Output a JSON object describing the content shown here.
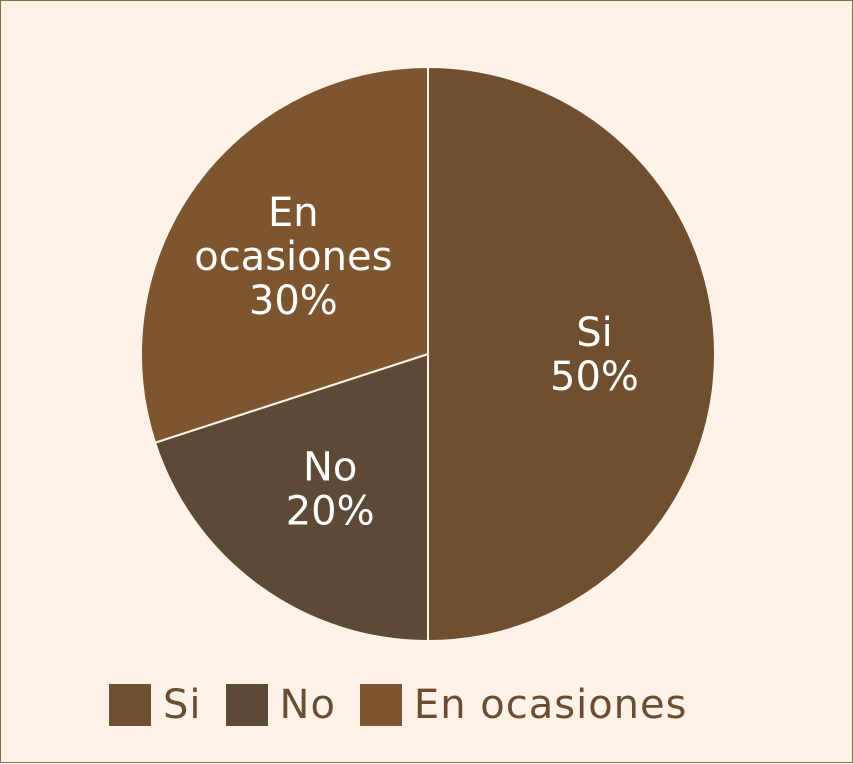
{
  "chart_data": {
    "type": "pie",
    "title": "",
    "categories": [
      "Si",
      "No",
      "En ocasiones"
    ],
    "values": [
      50,
      20,
      30
    ],
    "value_labels": [
      "50%",
      "20%",
      "30%"
    ],
    "colors": [
      "#704f30",
      "#5c4a37",
      "#7d5630"
    ],
    "legend_placement": "bottom",
    "slice_label_color": "#ffffff",
    "border_color": "#fdf2e8",
    "background": "#fdf2e8"
  }
}
